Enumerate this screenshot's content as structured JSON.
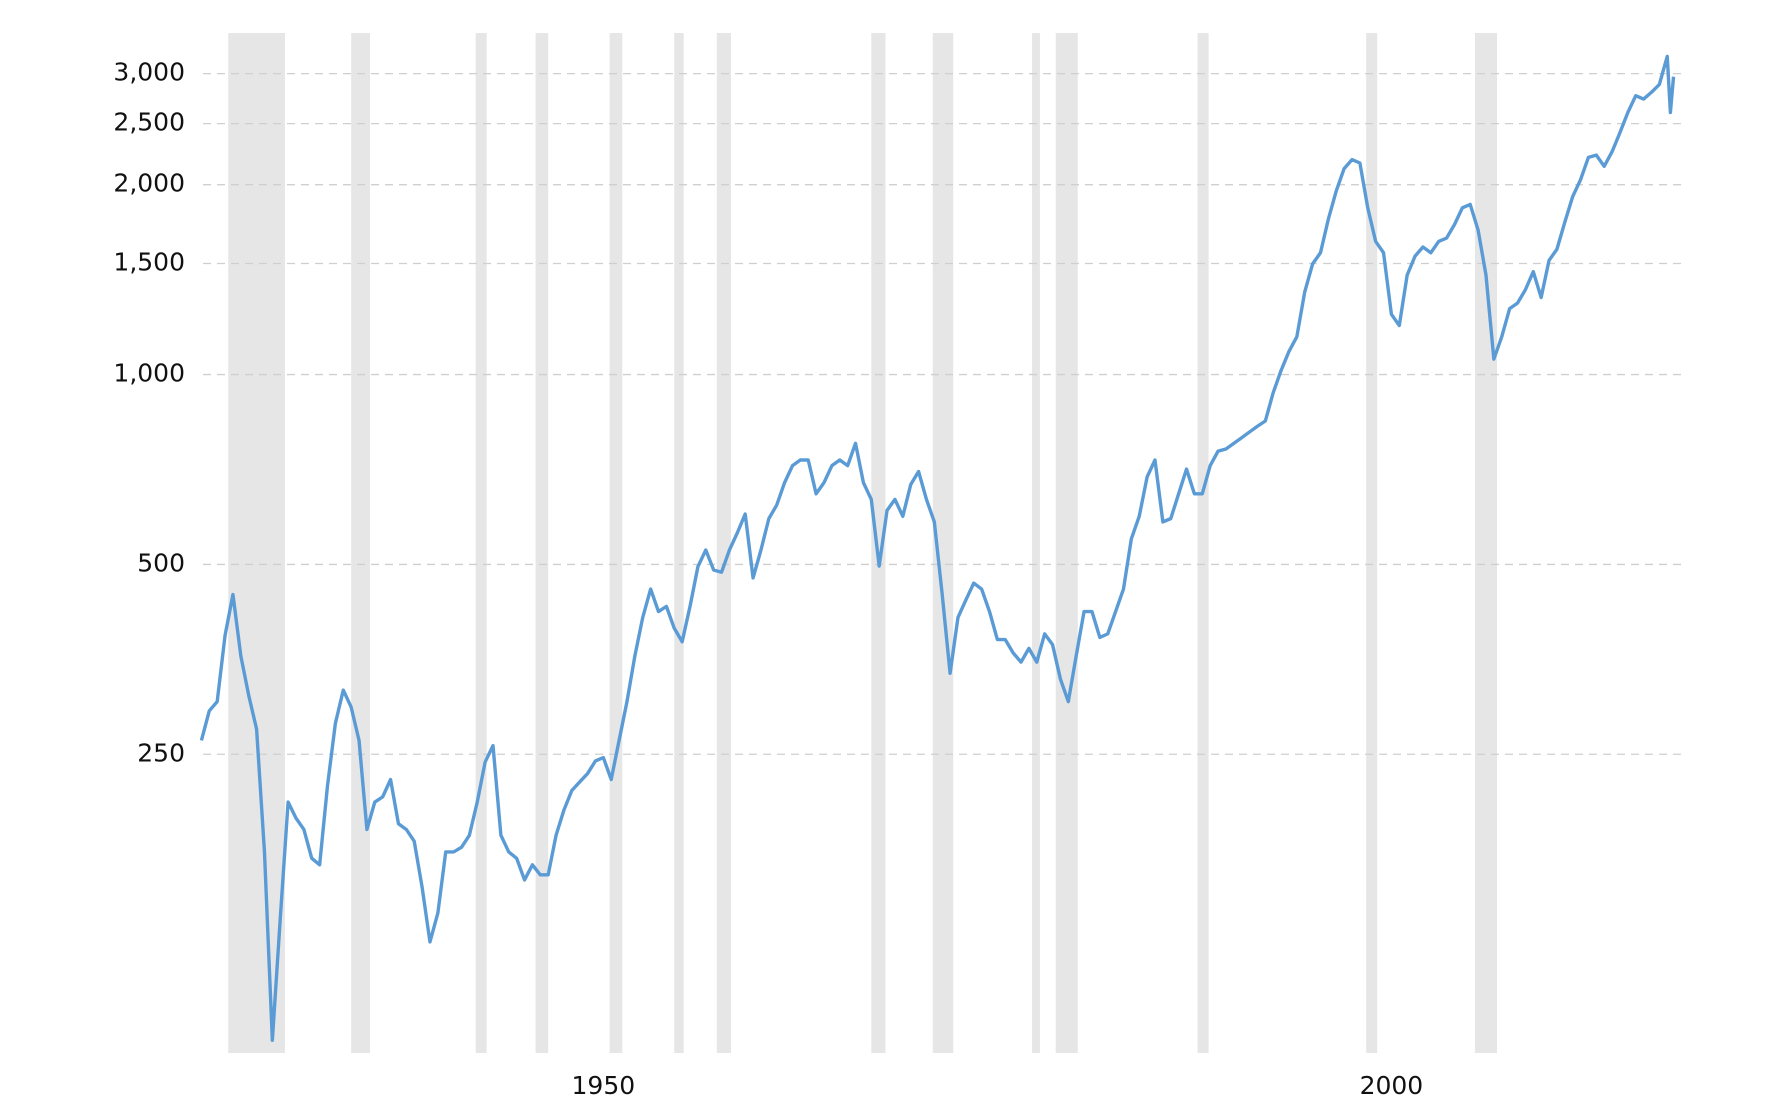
{
  "chart_data": {
    "type": "line",
    "x": [
      1924.5,
      1925.0,
      1925.5,
      1926.0,
      1926.5,
      1927.0,
      1927.5,
      1928.0,
      1928.5,
      1929.0,
      1929.5,
      1930.0,
      1930.5,
      1931.0,
      1931.5,
      1932.0,
      1932.5,
      1933.0,
      1933.5,
      1934.0,
      1934.5,
      1935.0,
      1935.5,
      1936.0,
      1936.5,
      1937.0,
      1937.5,
      1938.0,
      1938.5,
      1939.0,
      1939.5,
      1940.0,
      1940.5,
      1941.0,
      1941.5,
      1942.0,
      1942.5,
      1943.0,
      1943.5,
      1944.0,
      1944.5,
      1945.0,
      1945.5,
      1946.0,
      1946.5,
      1947.0,
      1947.5,
      1948.0,
      1948.5,
      1949.0,
      1949.5,
      1950.0,
      1950.5,
      1951.0,
      1951.5,
      1952.0,
      1952.5,
      1953.0,
      1953.5,
      1954.0,
      1954.5,
      1955.0,
      1955.5,
      1956.0,
      1956.5,
      1957.0,
      1957.5,
      1958.0,
      1958.5,
      1959.0,
      1959.5,
      1960.0,
      1960.5,
      1961.0,
      1961.5,
      1962.0,
      1962.5,
      1963.0,
      1963.5,
      1964.0,
      1964.5,
      1965.0,
      1965.5,
      1966.0,
      1966.5,
      1967.0,
      1967.5,
      1968.0,
      1968.5,
      1969.0,
      1969.5,
      1970.0,
      1970.5,
      1971.0,
      1971.5,
      1972.0,
      1972.5,
      1973.0,
      1973.5,
      1974.0,
      1974.5,
      1975.0,
      1975.5,
      1976.0,
      1976.5,
      1977.0,
      1977.5,
      1978.0,
      1978.5,
      1979.0,
      1979.5,
      1980.0,
      1980.5,
      1981.0,
      1981.5,
      1982.0,
      1982.5,
      1983.0,
      1983.5,
      1984.0,
      1984.5,
      1985.0,
      1985.5,
      1986.0,
      1986.5,
      1987.0,
      1987.5,
      1988.0,
      1988.5,
      1989.0,
      1989.5,
      1990.0,
      1990.5,
      1991.0,
      1991.5,
      1992.0,
      1992.5,
      1993.0,
      1993.5,
      1994.0,
      1994.5,
      1995.0,
      1995.5,
      1996.0,
      1996.5,
      1997.0,
      1997.5,
      1998.0,
      1998.5,
      1999.0,
      1999.5,
      2000.0,
      2000.5,
      2001.0,
      2001.5,
      2002.0,
      2002.5,
      2003.0,
      2003.5,
      2004.0,
      2004.5,
      2005.0,
      2005.5,
      2006.0,
      2006.5,
      2007.0,
      2007.5,
      2008.0,
      2008.5,
      2009.0,
      2009.5,
      2010.0,
      2010.5,
      2011.0,
      2011.5,
      2012.0,
      2012.5,
      2013.0,
      2013.5,
      2014.0,
      2014.5,
      2015.0,
      2015.5,
      2016.0,
      2016.5,
      2017.0,
      2017.5,
      2017.7,
      2017.9
    ],
    "series": [
      {
        "color": "#5b9bd5",
        "values": [
          263,
          293,
          303,
          386,
          448,
          358,
          310,
          274,
          175,
          88,
          137,
          210,
          198,
          190,
          171,
          167,
          223,
          280,
          316,
          297,
          263,
          190,
          210,
          214,
          228,
          194,
          190,
          182,
          154,
          126,
          140,
          175,
          175,
          178,
          186,
          210,
          243,
          258,
          186,
          175,
          171,
          158,
          167,
          161,
          161,
          186,
          204,
          219,
          226,
          233,
          244,
          247,
          228,
          263,
          303,
          358,
          412,
          457,
          421,
          429,
          396,
          377,
          429,
          496,
          527,
          490,
          486,
          527,
          561,
          601,
          476,
          527,
          591,
          621,
          674,
          717,
          732,
          732,
          647,
          674,
          717,
          732,
          717,
          778,
          674,
          634,
          497,
          609,
          634,
          596,
          669,
          702,
          634,
          584,
          448,
          336,
          412,
          439,
          467,
          457,
          421,
          380,
          380,
          362,
          350,
          368,
          350,
          388,
          373,
          329,
          303,
          358,
          421,
          421,
          383,
          388,
          421,
          457,
          549,
          596,
          688,
          732,
          584,
          591,
          647,
          708,
          647,
          647,
          717,
          756,
          762,
          778,
          794,
          811,
          828,
          844,
          936,
          1015,
          1088,
          1148,
          1352,
          1498,
          1560,
          1764,
          1955,
          2121,
          2192,
          2165,
          1838,
          1626,
          1560,
          1246,
          1196,
          1438,
          1541,
          1593,
          1560,
          1626,
          1646,
          1729,
          1838,
          1861,
          1695,
          1438,
          1058,
          1148,
          1272,
          1298,
          1363,
          1456,
          1325,
          1517,
          1580,
          1744,
          1915,
          2037,
          2210,
          2228,
          2139,
          2256,
          2419,
          2603,
          2768,
          2734,
          2803,
          2884,
          3195,
          2603,
          2967
        ]
      }
    ],
    "shaded_ranges": [
      [
        1926.2,
        1929.8
      ],
      [
        1934.0,
        1935.2
      ],
      [
        1941.9,
        1942.6
      ],
      [
        1945.7,
        1946.5
      ],
      [
        1950.4,
        1951.2
      ],
      [
        1954.5,
        1955.1
      ],
      [
        1957.2,
        1958.1
      ],
      [
        1967.0,
        1967.9
      ],
      [
        1970.9,
        1972.2
      ],
      [
        1977.2,
        1977.7
      ],
      [
        1978.7,
        1980.1
      ],
      [
        1987.7,
        1988.4
      ],
      [
        1998.4,
        1999.1
      ],
      [
        2005.3,
        2006.7
      ]
    ],
    "log_scale": true,
    "grid": true,
    "xlim": [
      1924.6,
      2018.5
    ],
    "xticks": [
      1950,
      2000
    ],
    "ylim": [
      84,
      3480
    ],
    "yticks": [
      250,
      500,
      {
        "value": 1000,
        "label": "1,000"
      },
      {
        "value": 1500,
        "label": "1,500"
      },
      {
        "value": 2000,
        "label": "2,000"
      },
      {
        "value": 2500,
        "label": "2,500"
      },
      {
        "value": 3000,
        "label": "3,000"
      }
    ]
  }
}
